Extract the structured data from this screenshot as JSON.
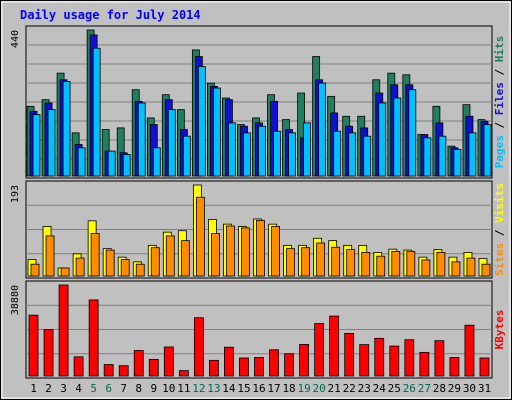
{
  "chart_data": [
    {
      "type": "bar",
      "title": "Daily usage for July 2014",
      "panel": "hits-files-pages",
      "y_tick_label": "440",
      "ylim": [
        0,
        440
      ],
      "x": [
        1,
        2,
        3,
        4,
        5,
        6,
        7,
        8,
        9,
        10,
        11,
        12,
        13,
        14,
        15,
        16,
        17,
        18,
        19,
        20,
        21,
        22,
        23,
        24,
        25,
        26,
        27,
        28,
        29,
        30,
        31
      ],
      "right_labels": [
        "Pages",
        "Files",
        "Hits"
      ],
      "series": [
        {
          "name": "Hits",
          "color": "#1f7f5f",
          "values": [
            210,
            230,
            310,
            130,
            440,
            140,
            145,
            260,
            175,
            245,
            200,
            380,
            280,
            235,
            155,
            175,
            245,
            170,
            250,
            360,
            240,
            180,
            180,
            290,
            310,
            305,
            125,
            210,
            90,
            215,
            170
          ]
        },
        {
          "name": "Files",
          "color": "#1010d0",
          "values": [
            195,
            220,
            290,
            95,
            425,
            75,
            70,
            225,
            155,
            230,
            140,
            360,
            270,
            230,
            150,
            160,
            225,
            140,
            115,
            290,
            190,
            150,
            145,
            250,
            275,
            275,
            125,
            160,
            85,
            180,
            165
          ]
        },
        {
          "name": "Pages",
          "color": "#00c0ff",
          "values": [
            185,
            200,
            285,
            85,
            385,
            75,
            65,
            220,
            85,
            200,
            120,
            330,
            265,
            160,
            130,
            150,
            135,
            130,
            160,
            280,
            135,
            130,
            120,
            220,
            235,
            260,
            115,
            120,
            80,
            130,
            155
          ]
        }
      ]
    },
    {
      "type": "bar",
      "panel": "visits-sites",
      "y_tick_label": "193",
      "ylim": [
        0,
        193
      ],
      "x": [
        1,
        2,
        3,
        4,
        5,
        6,
        7,
        8,
        9,
        10,
        11,
        12,
        13,
        14,
        15,
        16,
        17,
        18,
        19,
        20,
        21,
        22,
        23,
        24,
        25,
        26,
        27,
        28,
        29,
        30,
        31
      ],
      "right_labels": [
        "Sites",
        "Visits"
      ],
      "series": [
        {
          "name": "Visits",
          "color": "#ffff00",
          "values": [
            35,
            105,
            17,
            47,
            117,
            58,
            40,
            30,
            65,
            93,
            96,
            193,
            120,
            110,
            105,
            121,
            110,
            65,
            65,
            80,
            75,
            65,
            65,
            50,
            57,
            55,
            40,
            56,
            40,
            50,
            37
          ]
        },
        {
          "name": "Sites",
          "color": "#ff8c00",
          "values": [
            25,
            85,
            17,
            38,
            90,
            55,
            35,
            25,
            60,
            85,
            75,
            167,
            90,
            106,
            102,
            118,
            105,
            58,
            60,
            70,
            61,
            56,
            50,
            42,
            52,
            52,
            34,
            50,
            30,
            38,
            25
          ]
        }
      ]
    },
    {
      "type": "bar",
      "panel": "kbytes",
      "y_tick_label": "38880",
      "ylim": [
        0,
        38880
      ],
      "x": [
        1,
        2,
        3,
        4,
        5,
        6,
        7,
        8,
        9,
        10,
        11,
        12,
        13,
        14,
        15,
        16,
        17,
        18,
        19,
        20,
        21,
        22,
        23,
        24,
        25,
        26,
        27,
        28,
        29,
        30,
        31
      ],
      "right_labels": [
        "KBytes"
      ],
      "series": [
        {
          "name": "KBytes",
          "color": "#ff0000",
          "values": [
            26000,
            19800,
            38880,
            8200,
            32500,
            4900,
            4400,
            10900,
            7100,
            12400,
            2300,
            24900,
            6700,
            12300,
            7700,
            7900,
            11200,
            9500,
            13500,
            22400,
            25600,
            18200,
            13400,
            16100,
            12800,
            15500,
            10100,
            15100,
            7900,
            21700,
            7700
          ]
        }
      ]
    }
  ],
  "x_label_colors": {
    "weekday": "#000000",
    "weekend": "#006a4e"
  },
  "weekend_days": [
    5,
    6,
    12,
    13,
    19,
    20,
    26,
    27
  ]
}
